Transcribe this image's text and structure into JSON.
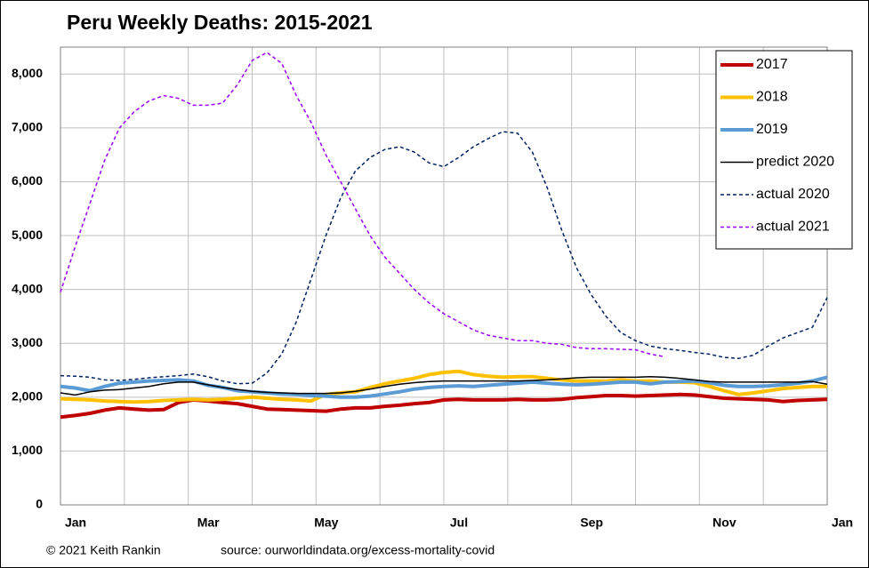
{
  "chart_data": {
    "type": "line",
    "title": "Peru Weekly Deaths: 2015-2021",
    "credit": "© 2021 Keith Rankin",
    "source": "source:  ourworldindata.org/excess-mortality-covid",
    "categories": [
      "Jan",
      null,
      null,
      null,
      null,
      null,
      null,
      null,
      null,
      "Mar",
      null,
      null,
      null,
      null,
      null,
      null,
      null,
      "May",
      null,
      null,
      null,
      null,
      null,
      null,
      null,
      null,
      "Jul",
      null,
      null,
      null,
      null,
      null,
      null,
      null,
      null,
      "Sep",
      null,
      null,
      null,
      null,
      null,
      null,
      null,
      null,
      "Nov",
      null,
      null,
      null,
      null,
      null,
      null,
      null,
      "Jan"
    ],
    "ylim": [
      0,
      8500
    ],
    "yticks": [
      0,
      {
        "value": 1000,
        "label": "1,000"
      },
      {
        "value": 2000,
        "label": "2,000"
      },
      {
        "value": 3000,
        "label": "3,000"
      },
      {
        "value": 4000,
        "label": "4,000"
      },
      {
        "value": 5000,
        "label": "5,000"
      },
      {
        "value": 6000,
        "label": "6,000"
      },
      {
        "value": 7000,
        "label": "7,000"
      },
      {
        "value": 8000,
        "label": "8,000"
      }
    ],
    "grid": true,
    "legend": "top-right",
    "series": [
      {
        "name": "2017",
        "color": "#c00000",
        "width": 4,
        "style": "solid",
        "values": [
          1630,
          1660,
          1700,
          1760,
          1800,
          1780,
          1760,
          1770,
          1900,
          1950,
          1930,
          1900,
          1880,
          1830,
          1780,
          1770,
          1760,
          1750,
          1740,
          1780,
          1800,
          1800,
          1830,
          1850,
          1880,
          1900,
          1950,
          1960,
          1950,
          1950,
          1950,
          1960,
          1950,
          1950,
          1960,
          1990,
          2010,
          2030,
          2030,
          2020,
          2030,
          2040,
          2050,
          2040,
          2010,
          1980,
          1970,
          1960,
          1950,
          1920,
          1940,
          1950,
          1960
        ]
      },
      {
        "name": "2018",
        "color": "#ffc000",
        "width": 4,
        "style": "solid",
        "values": [
          1970,
          1960,
          1950,
          1930,
          1920,
          1910,
          1920,
          1940,
          1950,
          1960,
          1950,
          1960,
          1980,
          2000,
          1980,
          1960,
          1950,
          1930,
          2050,
          2080,
          2100,
          2180,
          2250,
          2300,
          2350,
          2420,
          2460,
          2480,
          2420,
          2390,
          2370,
          2380,
          2380,
          2350,
          2320,
          2300,
          2300,
          2300,
          2320,
          2300,
          2300,
          2280,
          2280,
          2270,
          2200,
          2120,
          2050,
          2080,
          2120,
          2160,
          2180,
          2200,
          2200
        ]
      },
      {
        "name": "2019",
        "color": "#5b9bd5",
        "width": 4,
        "style": "solid",
        "values": [
          2200,
          2170,
          2120,
          2200,
          2260,
          2280,
          2300,
          2310,
          2320,
          2300,
          2220,
          2180,
          2120,
          2100,
          2080,
          2060,
          2050,
          2030,
          2020,
          2000,
          2000,
          2020,
          2060,
          2100,
          2150,
          2180,
          2200,
          2210,
          2200,
          2220,
          2240,
          2260,
          2280,
          2260,
          2240,
          2230,
          2240,
          2260,
          2280,
          2280,
          2250,
          2280,
          2290,
          2300,
          2270,
          2220,
          2200,
          2200,
          2210,
          2230,
          2260,
          2300,
          2370
        ]
      },
      {
        "name": "predict 2020",
        "color": "#000000",
        "width": 1.5,
        "style": "solid",
        "values": [
          2080,
          2040,
          2100,
          2130,
          2140,
          2170,
          2200,
          2250,
          2280,
          2280,
          2230,
          2180,
          2140,
          2110,
          2090,
          2080,
          2070,
          2070,
          2070,
          2080,
          2110,
          2150,
          2200,
          2240,
          2270,
          2290,
          2300,
          2300,
          2300,
          2300,
          2300,
          2300,
          2310,
          2320,
          2340,
          2360,
          2370,
          2370,
          2370,
          2370,
          2380,
          2370,
          2350,
          2320,
          2290,
          2280,
          2280,
          2280,
          2280,
          2280,
          2280,
          2290,
          2240
        ]
      },
      {
        "name": "actual 2020",
        "color": "#002060",
        "width": 1.5,
        "style": "dashed",
        "values": [
          2400,
          2390,
          2370,
          2320,
          2310,
          2330,
          2360,
          2380,
          2400,
          2430,
          2380,
          2300,
          2250,
          2260,
          2450,
          2800,
          3400,
          4200,
          5000,
          5700,
          6200,
          6450,
          6600,
          6650,
          6550,
          6350,
          6280,
          6450,
          6650,
          6800,
          6930,
          6900,
          6550,
          5900,
          5100,
          4400,
          3900,
          3500,
          3200,
          3050,
          2950,
          2900,
          2870,
          2830,
          2800,
          2740,
          2720,
          2780,
          2950,
          3100,
          3200,
          3300,
          3850
        ]
      },
      {
        "name": "actual 2021",
        "color": "#9900ff",
        "width": 1.5,
        "style": "dashed",
        "values": [
          3950,
          4800,
          5600,
          6400,
          7000,
          7300,
          7500,
          7600,
          7550,
          7420,
          7420,
          7460,
          7800,
          8250,
          8400,
          8200,
          7600,
          7100,
          6500,
          6000,
          5500,
          5000,
          4600,
          4300,
          4000,
          3750,
          3550,
          3400,
          3250,
          3150,
          3100,
          3050,
          3050,
          3000,
          2980,
          2920,
          2900,
          2900,
          2890,
          2880,
          2800,
          2750,
          null,
          null,
          null,
          null,
          null,
          null,
          null,
          null,
          null,
          null,
          null
        ]
      }
    ]
  }
}
